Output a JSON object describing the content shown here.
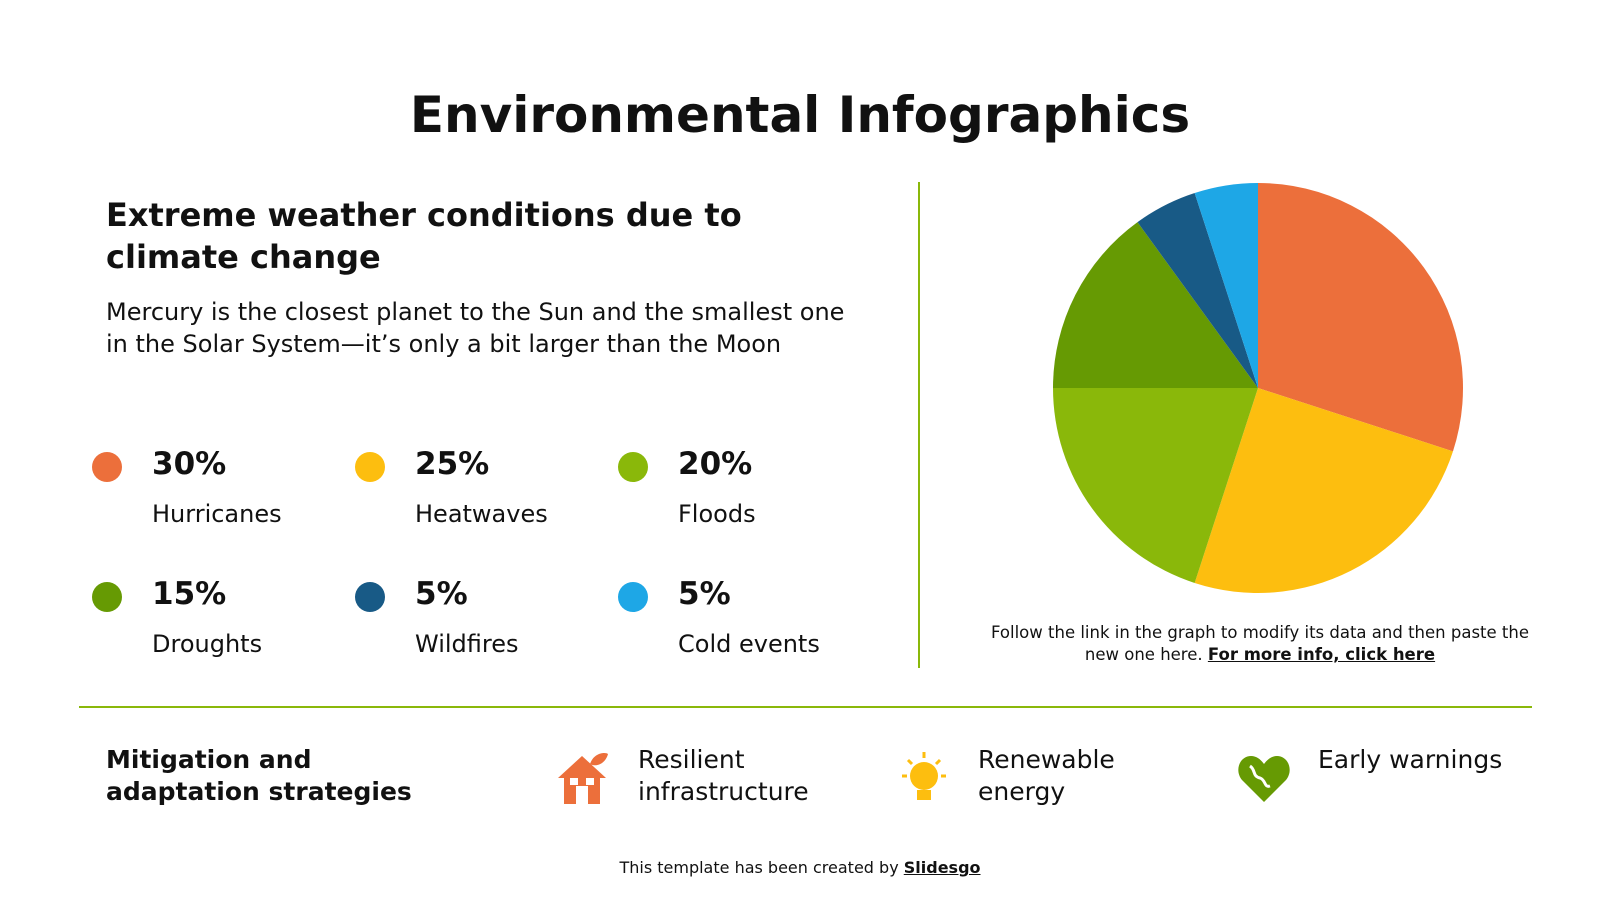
{
  "title": "Environmental Infographics",
  "heading": "Extreme weather conditions due to climate change",
  "description": "Mercury is the closest planet to the Sun and the smallest one in the Solar System—it’s only a bit larger than the Moon",
  "chart_data": {
    "type": "pie",
    "categories": [
      "Hurricanes",
      "Heatwaves",
      "Floods",
      "Droughts",
      "Wildfires",
      "Cold events"
    ],
    "values": [
      30,
      25,
      20,
      15,
      5,
      5
    ],
    "value_labels": [
      "30%",
      "25%",
      "20%",
      "15%",
      "5%",
      "5%"
    ],
    "colors": [
      "#ec6f3b",
      "#fdbe0f",
      "#8ab80a",
      "#669a03",
      "#185a86",
      "#1ea7e6"
    ]
  },
  "note": {
    "text": "Follow the link in the graph to modify its data and then paste the new one here.",
    "link": "For more info, click here"
  },
  "strategies": {
    "heading": "Mitigation and adaptation strategies",
    "items": [
      "Resilient infrastructure",
      "Renewable energy",
      "Early warnings"
    ]
  },
  "footer": {
    "text": "This template has been created by",
    "link": "Slidesgo"
  }
}
